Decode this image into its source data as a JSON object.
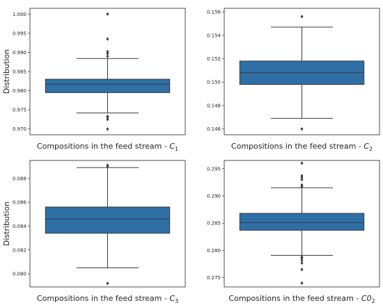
{
  "chart_data": [
    {
      "type": "box",
      "xlabel": "Compositions in the feed stream - ",
      "xlabel_var": "C",
      "xlabel_sub": "1",
      "ylabel": "Distribution",
      "ylim": [
        0.9685,
        1.0015
      ],
      "yticks": [
        0.97,
        0.975,
        0.98,
        0.985,
        0.99,
        0.995,
        1.0
      ],
      "ytick_labels": [
        "0.970",
        "0.975",
        "0.980",
        "0.985",
        "0.990",
        "0.995",
        "1.000"
      ],
      "box": {
        "q1": 0.9795,
        "median": 0.9817,
        "q3": 0.983,
        "whisker_low": 0.9742,
        "whisker_high": 0.9884
      },
      "outliers": [
        0.97,
        0.9725,
        0.973,
        0.9733,
        0.989,
        0.9897,
        0.9902,
        0.9935,
        1.0
      ],
      "color": "#2e70a6"
    },
    {
      "type": "box",
      "xlabel": "Compositions in the feed stream - ",
      "xlabel_var": "C",
      "xlabel_sub": "2",
      "ylabel": "",
      "ylim": [
        0.1455,
        0.1563
      ],
      "yticks": [
        0.146,
        0.148,
        0.15,
        0.152,
        0.154,
        0.156
      ],
      "ytick_labels": [
        "0.146",
        "0.148",
        "0.150",
        "0.152",
        "0.154",
        "0.156"
      ],
      "box": {
        "q1": 0.1498,
        "median": 0.1508,
        "q3": 0.1518,
        "whisker_low": 0.1469,
        "whisker_high": 0.1547
      },
      "outliers": [
        0.146,
        0.1556
      ],
      "color": "#2e70a6"
    },
    {
      "type": "box",
      "xlabel": "Compositions in the feed stream - ",
      "xlabel_var": "C",
      "xlabel_sub": "3",
      "ylabel": "Distribution",
      "ylim": [
        0.0789,
        0.0895
      ],
      "yticks": [
        0.08,
        0.082,
        0.084,
        0.086,
        0.088
      ],
      "ytick_labels": [
        "0.080",
        "0.082",
        "0.084",
        "0.086",
        "0.088"
      ],
      "box": {
        "q1": 0.0834,
        "median": 0.0846,
        "q3": 0.0856,
        "whisker_low": 0.0805,
        "whisker_high": 0.0889
      },
      "outliers": [
        0.0792,
        0.089,
        0.0891
      ],
      "color": "#2e70a6"
    },
    {
      "type": "box",
      "xlabel": "Compositions in the feed stream - ",
      "xlabel_var": "C0",
      "xlabel_sub": "2",
      "ylabel": "",
      "ylim": [
        0.2733,
        0.2965
      ],
      "yticks": [
        0.275,
        0.28,
        0.285,
        0.29,
        0.295
      ],
      "ytick_labels": [
        "0.275",
        "0.280",
        "0.285",
        "0.290",
        "0.295"
      ],
      "box": {
        "q1": 0.2837,
        "median": 0.2851,
        "q3": 0.2868,
        "whisker_low": 0.2791,
        "whisker_high": 0.2915
      },
      "outliers": [
        0.274,
        0.2765,
        0.2777,
        0.2782,
        0.2786,
        0.2788,
        0.2917,
        0.292,
        0.293,
        0.2934,
        0.2937,
        0.296
      ],
      "color": "#2e70a6"
    }
  ]
}
